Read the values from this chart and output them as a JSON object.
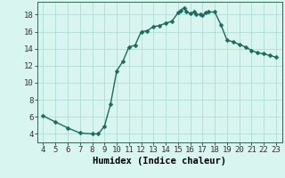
{
  "x": [
    4,
    5,
    6,
    7,
    8,
    8.5,
    9,
    9.5,
    10,
    10.5,
    11,
    11.5,
    12,
    12.5,
    13,
    13.5,
    14,
    14.5,
    15,
    15.2,
    15.5,
    15.7,
    16,
    16.3,
    16.5,
    16.8,
    17,
    17.3,
    17.5,
    18,
    18.5,
    19,
    19.5,
    20,
    20.5,
    21,
    21.5,
    22,
    22.5,
    23
  ],
  "y": [
    6.1,
    5.4,
    4.7,
    4.1,
    4.0,
    4.0,
    4.9,
    7.5,
    11.4,
    12.5,
    14.2,
    14.4,
    16.0,
    16.1,
    16.6,
    16.7,
    17.0,
    17.2,
    18.2,
    18.5,
    18.8,
    18.4,
    18.1,
    18.3,
    18.0,
    18.0,
    17.9,
    18.2,
    18.3,
    18.3,
    16.8,
    15.0,
    14.8,
    14.5,
    14.2,
    13.8,
    13.5,
    13.4,
    13.2,
    13.0
  ],
  "line_color": "#1a6b5e",
  "marker_color": "#1a6b5e",
  "bg_color": "#d8f5f0",
  "grid_color": "#b0ddd5",
  "xlabel": "Humidex (Indice chaleur)",
  "xlim": [
    3.5,
    23.5
  ],
  "ylim": [
    3.0,
    19.5
  ],
  "xticks": [
    4,
    5,
    6,
    7,
    8,
    9,
    10,
    11,
    12,
    13,
    14,
    15,
    16,
    17,
    18,
    19,
    20,
    21,
    22,
    23
  ],
  "yticks": [
    4,
    6,
    8,
    10,
    12,
    14,
    16,
    18
  ],
  "xlabel_fontsize": 7.5,
  "tick_fontsize": 6.5,
  "line_width": 1.0,
  "marker_size": 2.5
}
